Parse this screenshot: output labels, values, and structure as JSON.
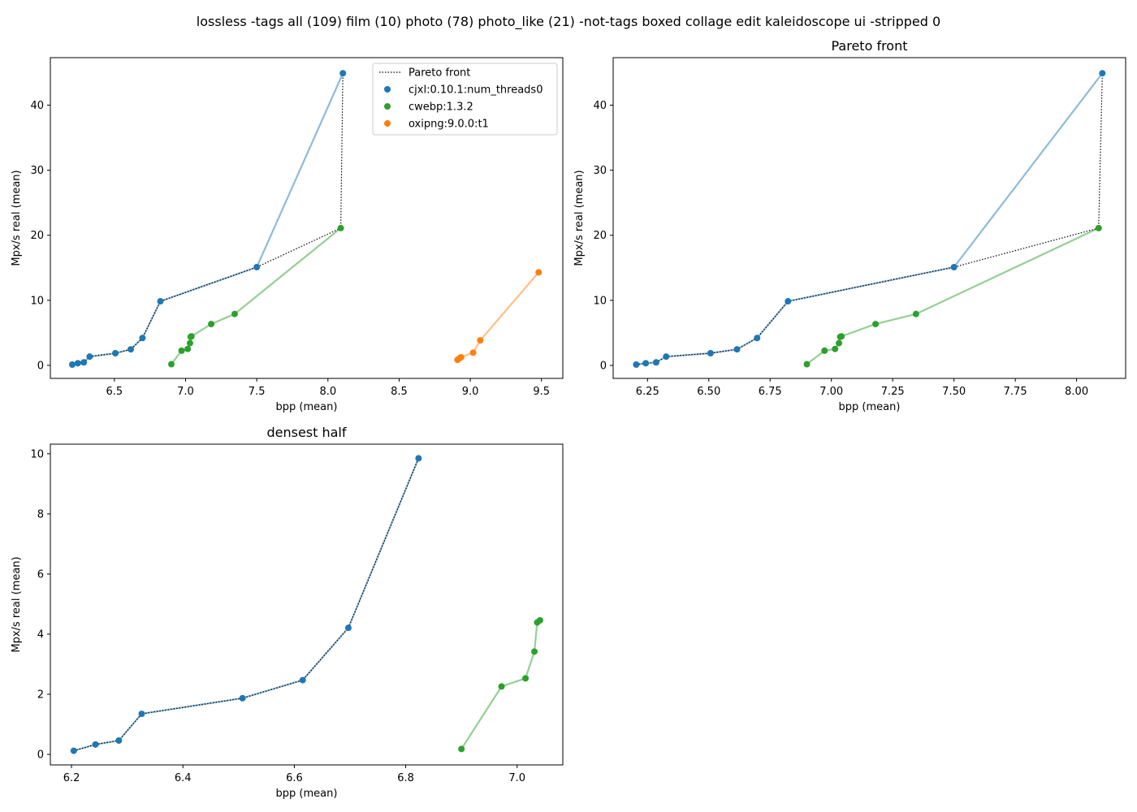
{
  "suptitle": "lossless -tags all (109) film (10) photo (78) photo_like (21) -not-tags boxed collage edit kaleidoscope ui -stripped 0",
  "colors": {
    "cjxl": "#1f77b4",
    "cwebp": "#2ca02c",
    "oxipng": "#ff7f0e",
    "pareto": "#000000"
  },
  "legend": {
    "pareto": "Pareto front",
    "series_names": [
      "cjxl:0.10.1:num_threads0",
      "cwebp:1.3.2",
      "oxipng:9.0.0:t1"
    ]
  },
  "chart_data": [
    {
      "type": "scatter",
      "title": "",
      "xlabel": "bpp (mean)",
      "ylabel": "Mpx/s real (mean)",
      "xlim": [
        6.05,
        9.65
      ],
      "ylim": [
        -2.0,
        47.3
      ],
      "xticks": [
        6.5,
        7.0,
        7.5,
        8.0,
        8.5,
        9.0,
        9.5
      ],
      "xtick_labels": [
        "6.5",
        "7.0",
        "7.5",
        "8.0",
        "8.5",
        "9.0",
        "9.5"
      ],
      "yticks": [
        0,
        10,
        20,
        30,
        40
      ],
      "ytick_labels": [
        "0",
        "10",
        "20",
        "30",
        "40"
      ],
      "legend_position": "top-right",
      "series": [
        {
          "name": "cjxl:0.10.1:num_threads0",
          "color": "cjxl",
          "points": [
            [
              6.204,
              0.12
            ],
            [
              6.243,
              0.33
            ],
            [
              6.285,
              0.46
            ],
            [
              6.326,
              1.35
            ],
            [
              6.507,
              1.87
            ],
            [
              6.615,
              2.47
            ],
            [
              6.697,
              4.21
            ],
            [
              6.823,
              9.85
            ],
            [
              7.5,
              15.1
            ],
            [
              8.105,
              44.9
            ]
          ]
        },
        {
          "name": "cwebp:1.3.2",
          "color": "cwebp",
          "points": [
            [
              6.9,
              0.18
            ],
            [
              6.972,
              2.26
            ],
            [
              7.015,
              2.53
            ],
            [
              7.031,
              3.42
            ],
            [
              7.036,
              4.39
            ],
            [
              7.041,
              4.46
            ],
            [
              7.18,
              6.35
            ],
            [
              7.345,
              7.9
            ],
            [
              8.09,
              21.1
            ]
          ]
        },
        {
          "name": "oxipng:9.0.0:t1",
          "color": "oxipng",
          "points": [
            [
              8.91,
              0.85
            ],
            [
              8.925,
              1.1
            ],
            [
              8.935,
              1.25
            ],
            [
              9.02,
              1.95
            ],
            [
              9.07,
              3.85
            ],
            [
              9.48,
              14.3
            ]
          ]
        }
      ],
      "pareto": [
        [
          6.204,
          0.12
        ],
        [
          6.243,
          0.33
        ],
        [
          6.285,
          0.46
        ],
        [
          6.326,
          1.35
        ],
        [
          6.507,
          1.87
        ],
        [
          6.615,
          2.47
        ],
        [
          6.697,
          4.21
        ],
        [
          6.823,
          9.85
        ],
        [
          7.5,
          15.1
        ],
        [
          8.09,
          21.1
        ],
        [
          8.105,
          44.9
        ]
      ]
    },
    {
      "type": "scatter",
      "title": "Pareto front",
      "xlabel": "bpp (mean)",
      "ylabel": "Mpx/s real (mean)",
      "xlim": [
        6.11,
        8.2
      ],
      "ylim": [
        -2.0,
        47.3
      ],
      "xticks": [
        6.25,
        6.5,
        6.75,
        7.0,
        7.25,
        7.5,
        7.75,
        8.0
      ],
      "xtick_labels": [
        "6.25",
        "6.50",
        "6.75",
        "7.00",
        "7.25",
        "7.50",
        "7.75",
        "8.00"
      ],
      "yticks": [
        0,
        10,
        20,
        30,
        40
      ],
      "ytick_labels": [
        "0",
        "10",
        "20",
        "30",
        "40"
      ],
      "series": [
        {
          "name": "cjxl:0.10.1:num_threads0",
          "color": "cjxl",
          "points": [
            [
              6.204,
              0.12
            ],
            [
              6.243,
              0.33
            ],
            [
              6.285,
              0.46
            ],
            [
              6.326,
              1.35
            ],
            [
              6.507,
              1.87
            ],
            [
              6.615,
              2.47
            ],
            [
              6.697,
              4.21
            ],
            [
              6.823,
              9.85
            ],
            [
              7.5,
              15.1
            ],
            [
              8.105,
              44.9
            ]
          ]
        },
        {
          "name": "cwebp:1.3.2",
          "color": "cwebp",
          "points": [
            [
              6.9,
              0.18
            ],
            [
              6.972,
              2.26
            ],
            [
              7.015,
              2.53
            ],
            [
              7.031,
              3.42
            ],
            [
              7.036,
              4.39
            ],
            [
              7.041,
              4.46
            ],
            [
              7.18,
              6.35
            ],
            [
              7.345,
              7.9
            ],
            [
              8.09,
              21.1
            ]
          ]
        }
      ],
      "pareto": [
        [
          6.204,
          0.12
        ],
        [
          6.243,
          0.33
        ],
        [
          6.285,
          0.46
        ],
        [
          6.326,
          1.35
        ],
        [
          6.507,
          1.87
        ],
        [
          6.615,
          2.47
        ],
        [
          6.697,
          4.21
        ],
        [
          6.823,
          9.85
        ],
        [
          7.5,
          15.1
        ],
        [
          8.09,
          21.1
        ],
        [
          8.105,
          44.9
        ]
      ]
    },
    {
      "type": "scatter",
      "title": "densest half",
      "xlabel": "bpp (mean)",
      "ylabel": "Mpx/s real (mean)",
      "xlim": [
        6.162,
        7.082
      ],
      "ylim": [
        -0.35,
        10.32
      ],
      "xticks": [
        6.2,
        6.4,
        6.6,
        6.8,
        7.0
      ],
      "xtick_labels": [
        "6.2",
        "6.4",
        "6.6",
        "6.8",
        "7.0"
      ],
      "yticks": [
        0,
        2,
        4,
        6,
        8,
        10
      ],
      "ytick_labels": [
        "0",
        "2",
        "4",
        "6",
        "8",
        "10"
      ],
      "series": [
        {
          "name": "cjxl:0.10.1:num_threads0",
          "color": "cjxl",
          "points": [
            [
              6.204,
              0.12
            ],
            [
              6.243,
              0.33
            ],
            [
              6.285,
              0.46
            ],
            [
              6.326,
              1.35
            ],
            [
              6.507,
              1.87
            ],
            [
              6.615,
              2.47
            ],
            [
              6.697,
              4.21
            ],
            [
              6.823,
              9.85
            ]
          ]
        },
        {
          "name": "cwebp:1.3.2",
          "color": "cwebp",
          "points": [
            [
              6.9,
              0.18
            ],
            [
              6.972,
              2.26
            ],
            [
              7.015,
              2.53
            ],
            [
              7.031,
              3.42
            ],
            [
              7.036,
              4.39
            ],
            [
              7.041,
              4.46
            ]
          ]
        }
      ],
      "pareto": [
        [
          6.204,
          0.12
        ],
        [
          6.243,
          0.33
        ],
        [
          6.285,
          0.46
        ],
        [
          6.326,
          1.35
        ],
        [
          6.507,
          1.87
        ],
        [
          6.615,
          2.47
        ],
        [
          6.697,
          4.21
        ],
        [
          6.823,
          9.85
        ]
      ]
    }
  ]
}
